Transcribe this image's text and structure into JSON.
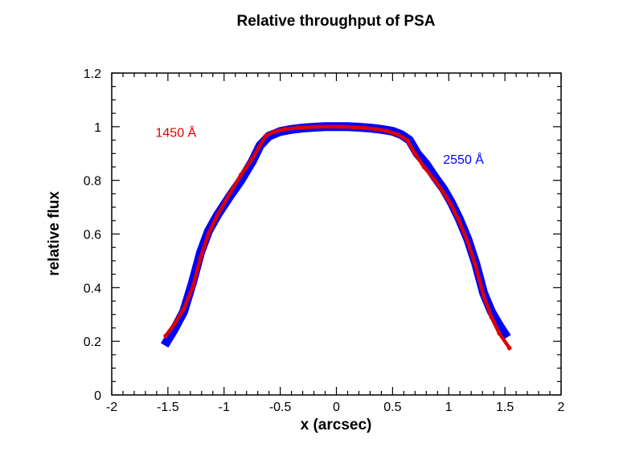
{
  "chart_data": {
    "type": "line",
    "title": "Relative throughput of PSA",
    "xlabel": "x (arcsec)",
    "ylabel": "relative flux",
    "xlim": [
      -2,
      2
    ],
    "ylim": [
      0,
      1.2
    ],
    "x_ticks": [
      -2,
      -1.5,
      -1,
      -0.5,
      0,
      0.5,
      1,
      1.5,
      2
    ],
    "x_tick_labels": [
      "-2",
      "-1.5",
      "-1",
      "-0.5",
      "0",
      "0.5",
      "1",
      "1.5",
      "2"
    ],
    "x_minor_step": 0.1,
    "y_ticks": [
      0,
      0.2,
      0.4,
      0.6,
      0.8,
      1,
      1.2
    ],
    "y_tick_labels": [
      "0",
      "0.2",
      "0.4",
      "0.6",
      "0.8",
      "1",
      "1.2"
    ],
    "y_minor_step": 0.05,
    "grid": false,
    "ticks_on_all_sides": true,
    "series": [
      {
        "name": "2550 Å",
        "color": "#0000ff",
        "style": "thick-line",
        "x": [
          -1.53,
          -1.45,
          -1.36,
          -1.28,
          -1.21,
          -1.14,
          -1.06,
          -0.95,
          -0.85,
          -0.75,
          -0.68,
          -0.6,
          -0.5,
          -0.4,
          -0.3,
          -0.2,
          -0.1,
          0,
          0.1,
          0.2,
          0.3,
          0.4,
          0.5,
          0.58,
          0.65,
          0.72,
          0.8,
          0.88,
          0.95,
          1.02,
          1.09,
          1.17,
          1.24,
          1.31,
          1.38,
          1.45,
          1.52
        ],
        "y": [
          0.185,
          0.24,
          0.31,
          0.42,
          0.53,
          0.61,
          0.67,
          0.74,
          0.8,
          0.87,
          0.93,
          0.965,
          0.982,
          0.99,
          0.995,
          0.998,
          1.0,
          1.0,
          1.0,
          0.998,
          0.995,
          0.99,
          0.983,
          0.97,
          0.95,
          0.9,
          0.86,
          0.81,
          0.77,
          0.72,
          0.66,
          0.58,
          0.49,
          0.38,
          0.31,
          0.26,
          0.215
        ]
      },
      {
        "name": "1450 Å",
        "color": "#dd0000",
        "style": "line-with-dots",
        "x": [
          -1.52,
          -1.44,
          -1.36,
          -1.28,
          -1.21,
          -1.14,
          -1.06,
          -0.95,
          -0.85,
          -0.75,
          -0.68,
          -0.63,
          -0.55,
          -0.45,
          -0.35,
          -0.25,
          -0.15,
          -0.05,
          0.05,
          0.15,
          0.25,
          0.35,
          0.45,
          0.55,
          0.63,
          0.7,
          0.78,
          0.877,
          0.948,
          1.02,
          1.09,
          1.17,
          1.24,
          1.31,
          1.38,
          1.45,
          1.54
        ],
        "y": [
          0.22,
          0.265,
          0.32,
          0.4,
          0.51,
          0.6,
          0.67,
          0.75,
          0.82,
          0.88,
          0.93,
          0.965,
          0.982,
          0.991,
          0.996,
          0.998,
          1.0,
          1.0,
          1.0,
          0.998,
          0.996,
          0.991,
          0.984,
          0.97,
          0.95,
          0.9,
          0.85,
          0.8,
          0.757,
          0.71,
          0.65,
          0.57,
          0.48,
          0.37,
          0.29,
          0.23,
          0.175
        ]
      }
    ],
    "annotations": [
      {
        "text": "1450 Å",
        "x": -1.61,
        "y": 0.98,
        "color": "#dd0000"
      },
      {
        "text": "2550 Å",
        "x": 0.95,
        "y": 0.88,
        "color": "#0000ff"
      }
    ]
  }
}
